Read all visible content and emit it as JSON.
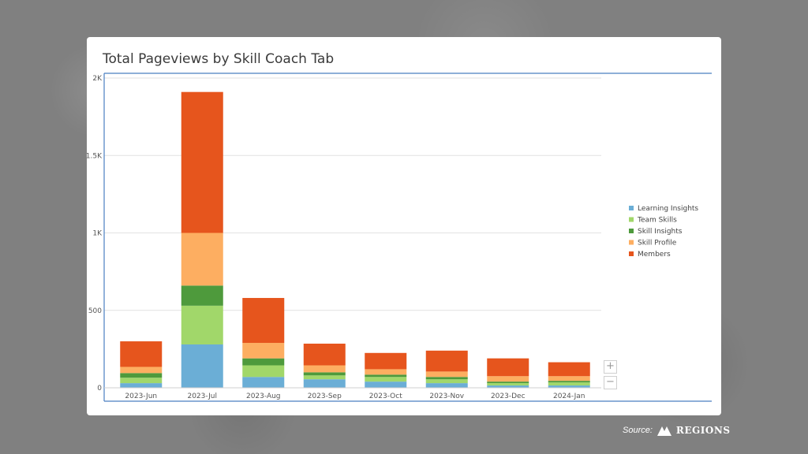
{
  "card": {
    "title": "Total Pageviews by Skill Coach Tab"
  },
  "zoom": {
    "in_label": "+",
    "out_label": "−"
  },
  "footer": {
    "source_label": "Source:",
    "brand": "REGIONS"
  },
  "colors": {
    "Learning Insights": "#6baed6",
    "Team Skills": "#a1d76a",
    "Skill Insights": "#4e9a3c",
    "Skill Profile": "#fdae61",
    "Members": "#e6551d",
    "axis_line": "#4a7fc1",
    "grid": "#e2e2e2"
  },
  "chart_data": {
    "type": "bar",
    "stacked": true,
    "title": "Total Pageviews by Skill Coach Tab",
    "categories": [
      "2023-Jun",
      "2023-Jul",
      "2023-Aug",
      "2023-Sep",
      "2023-Oct",
      "2023-Nov",
      "2023-Dec",
      "2024-Jan"
    ],
    "series": [
      {
        "name": "Learning Insights",
        "values": [
          30,
          280,
          70,
          55,
          40,
          30,
          15,
          15
        ]
      },
      {
        "name": "Team Skills",
        "values": [
          35,
          250,
          75,
          25,
          30,
          25,
          15,
          20
        ]
      },
      {
        "name": "Skill Insights",
        "values": [
          30,
          130,
          45,
          20,
          15,
          15,
          10,
          10
        ]
      },
      {
        "name": "Skill Profile",
        "values": [
          40,
          340,
          100,
          45,
          35,
          35,
          35,
          30
        ]
      },
      {
        "name": "Members",
        "values": [
          165,
          910,
          290,
          140,
          105,
          135,
          115,
          90
        ]
      }
    ],
    "ylim": [
      0,
      2000
    ],
    "yticks": [
      0,
      500,
      1000,
      1500,
      2000
    ],
    "ytick_labels": [
      "0",
      "500",
      "1K",
      "1.5K",
      "2K"
    ],
    "grid": true,
    "legend": "right"
  }
}
